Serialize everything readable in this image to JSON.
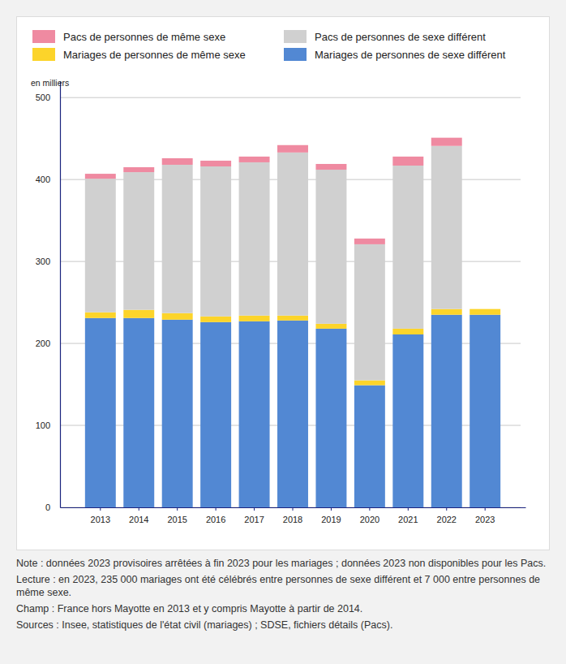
{
  "chart_data": {
    "type": "bar",
    "stacked": true,
    "grid": true,
    "legend": "top",
    "y_label": "en milliers",
    "categories": [
      "2013",
      "2014",
      "2015",
      "2016",
      "2017",
      "2018",
      "2019",
      "2020",
      "2021",
      "2022",
      "2023"
    ],
    "series": [
      {
        "name": "Mariages de personnes de sexe différent",
        "color": "#5288d3",
        "values": [
          231,
          231,
          229,
          226,
          227,
          228,
          218,
          149,
          211,
          235,
          235
        ]
      },
      {
        "name": "Mariages de personnes de même sexe",
        "color": "#fcd42a",
        "values": [
          7,
          10,
          8,
          7,
          7,
          6,
          6,
          6,
          7,
          7,
          7
        ]
      },
      {
        "name": "Pacs de personnes de sexe différent",
        "color": "#d0d0d0",
        "values": [
          163,
          168,
          181,
          183,
          187,
          199,
          188,
          166,
          199,
          199,
          null
        ]
      },
      {
        "name": "Pacs de personnes de même sexe",
        "color": "#ef8aa1",
        "values": [
          6,
          6,
          8,
          7,
          7,
          9,
          7,
          7,
          11,
          10,
          null
        ]
      }
    ],
    "ylim": [
      0,
      520
    ],
    "yticks": [
      0,
      100,
      200,
      300,
      400,
      500
    ],
    "notes": [
      "Note : données 2023 provisoires arrêtées à fin 2023 pour les mariages ; données 2023 non disponibles pour les Pacs.",
      "Lecture : en 2023, 235 000 mariages ont été célébrés entre personnes de sexe différent et 7 000 entre personnes de même sexe.",
      "Champ : France hors Mayotte en 2013 et y compris Mayotte à partir de 2014.",
      "Sources : Insee, statistiques de l'état civil (mariages) ; SDSE, fichiers détails (Pacs)."
    ]
  }
}
